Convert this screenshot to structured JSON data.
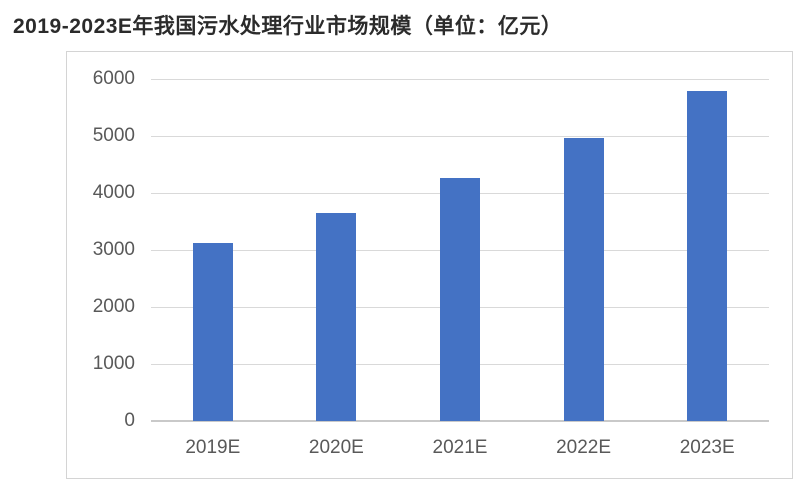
{
  "page": {
    "background": "#ffffff"
  },
  "chart_data": {
    "type": "bar",
    "title": "2019-2023E年我国污水处理行业市场规模（单位：亿元）",
    "unit_label": "亿元",
    "categories": [
      "2019E",
      "2020E",
      "2021E",
      "2022E",
      "2023E"
    ],
    "values": [
      3130,
      3650,
      4260,
      4960,
      5790
    ],
    "xlabel": "",
    "ylabel": "",
    "ylim": [
      0,
      6000
    ],
    "yticks": [
      0,
      1000,
      2000,
      3000,
      4000,
      5000,
      6000
    ],
    "grid": true,
    "legend_position": "none",
    "colors": {
      "bar": "#4472C4",
      "gridline": "#d9d9d9",
      "axis_line": "#c9c9c9",
      "tick_label": "#595959",
      "title": "#2b2b2b",
      "frame_border": "#d4d4d4"
    }
  }
}
